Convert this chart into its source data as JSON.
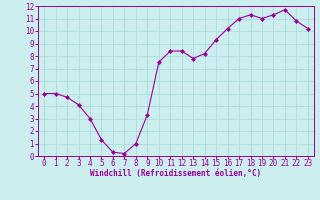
{
  "x": [
    0,
    1,
    2,
    3,
    4,
    5,
    6,
    7,
    8,
    9,
    10,
    11,
    12,
    13,
    14,
    15,
    16,
    17,
    18,
    19,
    20,
    21,
    22,
    23
  ],
  "y": [
    5.0,
    5.0,
    4.7,
    4.1,
    3.0,
    1.3,
    0.3,
    0.2,
    1.0,
    3.3,
    7.5,
    8.4,
    8.4,
    7.8,
    8.2,
    9.3,
    10.2,
    11.0,
    11.3,
    11.0,
    11.3,
    11.7,
    10.8,
    10.2
  ],
  "line_color": "#990099",
  "marker": "D",
  "marker_size": 2,
  "bg_color": "#cceeee",
  "grid_color": "#aadddd",
  "xlabel": "Windchill (Refroidissement éolien,°C)",
  "xlabel_color": "#990099",
  "tick_color": "#990099",
  "axis_color": "#990099",
  "ylim": [
    0,
    12
  ],
  "xlim": [
    -0.5,
    23.5
  ],
  "yticks": [
    0,
    1,
    2,
    3,
    4,
    5,
    6,
    7,
    8,
    9,
    10,
    11,
    12
  ],
  "xticks": [
    0,
    1,
    2,
    3,
    4,
    5,
    6,
    7,
    8,
    9,
    10,
    11,
    12,
    13,
    14,
    15,
    16,
    17,
    18,
    19,
    20,
    21,
    22,
    23
  ],
  "tick_fontsize": 5.5,
  "xlabel_fontsize": 5.5
}
